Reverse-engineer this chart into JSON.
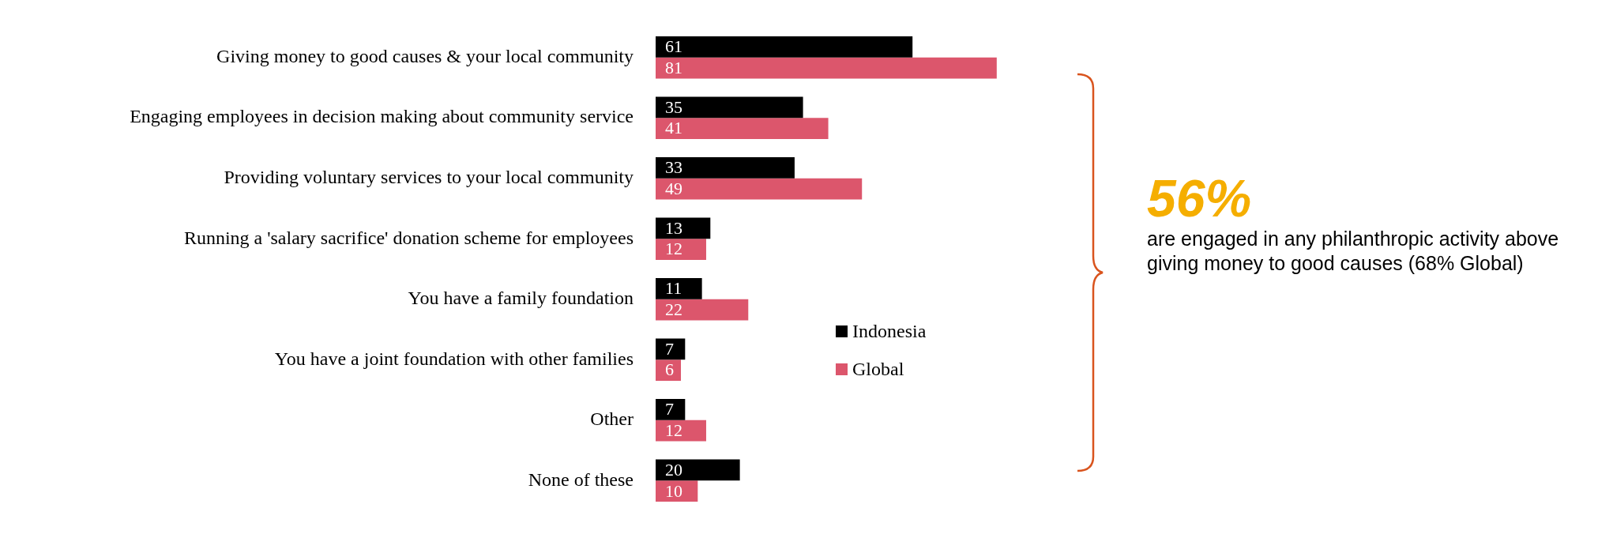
{
  "chart_data": {
    "type": "bar",
    "orientation": "horizontal",
    "data_labels": true,
    "legend": "right",
    "categories": [
      "Giving money to good causes & your local community",
      "Engaging employees in decision making about community service",
      "Providing voluntary services to your local community",
      "Running a 'salary sacrifice' donation scheme for employees",
      "You have a family foundation",
      "You have a joint foundation with other families",
      "Other",
      "None of these"
    ],
    "series": [
      {
        "name": "Indonesia",
        "color": "#000000",
        "values": [
          61,
          35,
          33,
          13,
          11,
          7,
          7,
          20
        ]
      },
      {
        "name": "Global",
        "color": "#dc566c",
        "values": [
          81,
          41,
          49,
          12,
          22,
          6,
          12,
          10
        ]
      }
    ],
    "annotations": [
      "56%",
      "are engaged in any philanthropic activity above giving money to good causes (68% Global)"
    ]
  }
}
